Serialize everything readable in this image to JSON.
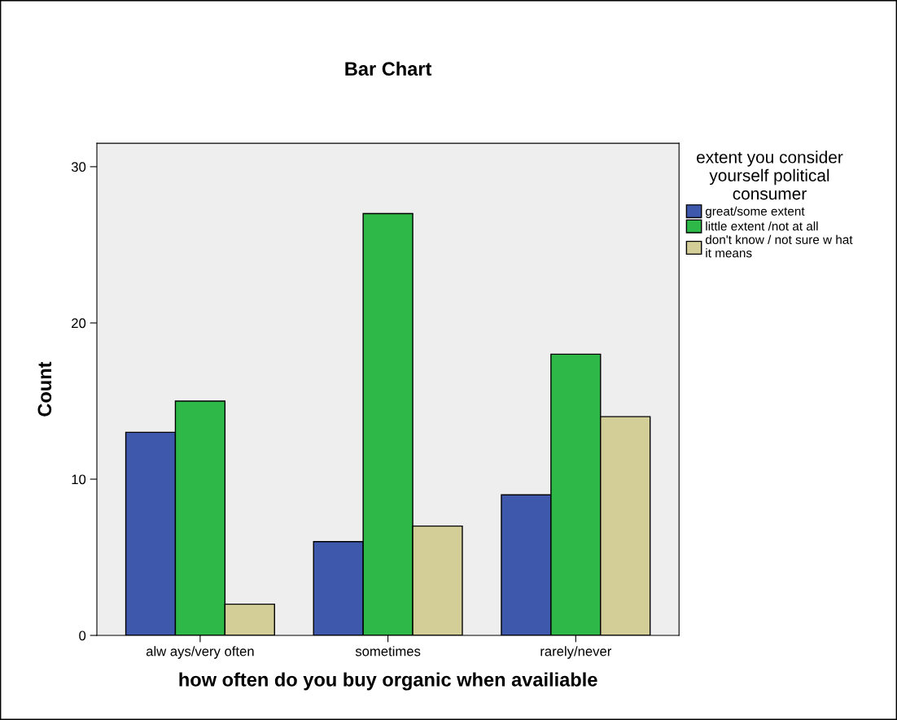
{
  "chart_data": {
    "type": "bar",
    "title": "Bar Chart",
    "xlabel": "how often do you buy organic when availiable",
    "ylabel": "Count",
    "categories": [
      "alw ays/very often",
      "sometimes",
      "rarely/never"
    ],
    "legend_title": "extent you consider\nyourself political\nconsumer",
    "series": [
      {
        "name": "great/some extent",
        "color": "#3e58ac",
        "values": [
          13,
          6,
          9
        ]
      },
      {
        "name": "little extent /not at all",
        "color": "#2eb848",
        "values": [
          15,
          27,
          18
        ]
      },
      {
        "name": "don't know / not sure w hat\nit means",
        "color": "#d3ce97",
        "values": [
          2,
          7,
          14
        ]
      }
    ],
    "ylim": [
      0,
      31.5
    ],
    "yticks": [
      0,
      10,
      20,
      30
    ],
    "grid": false,
    "legend": "right"
  }
}
